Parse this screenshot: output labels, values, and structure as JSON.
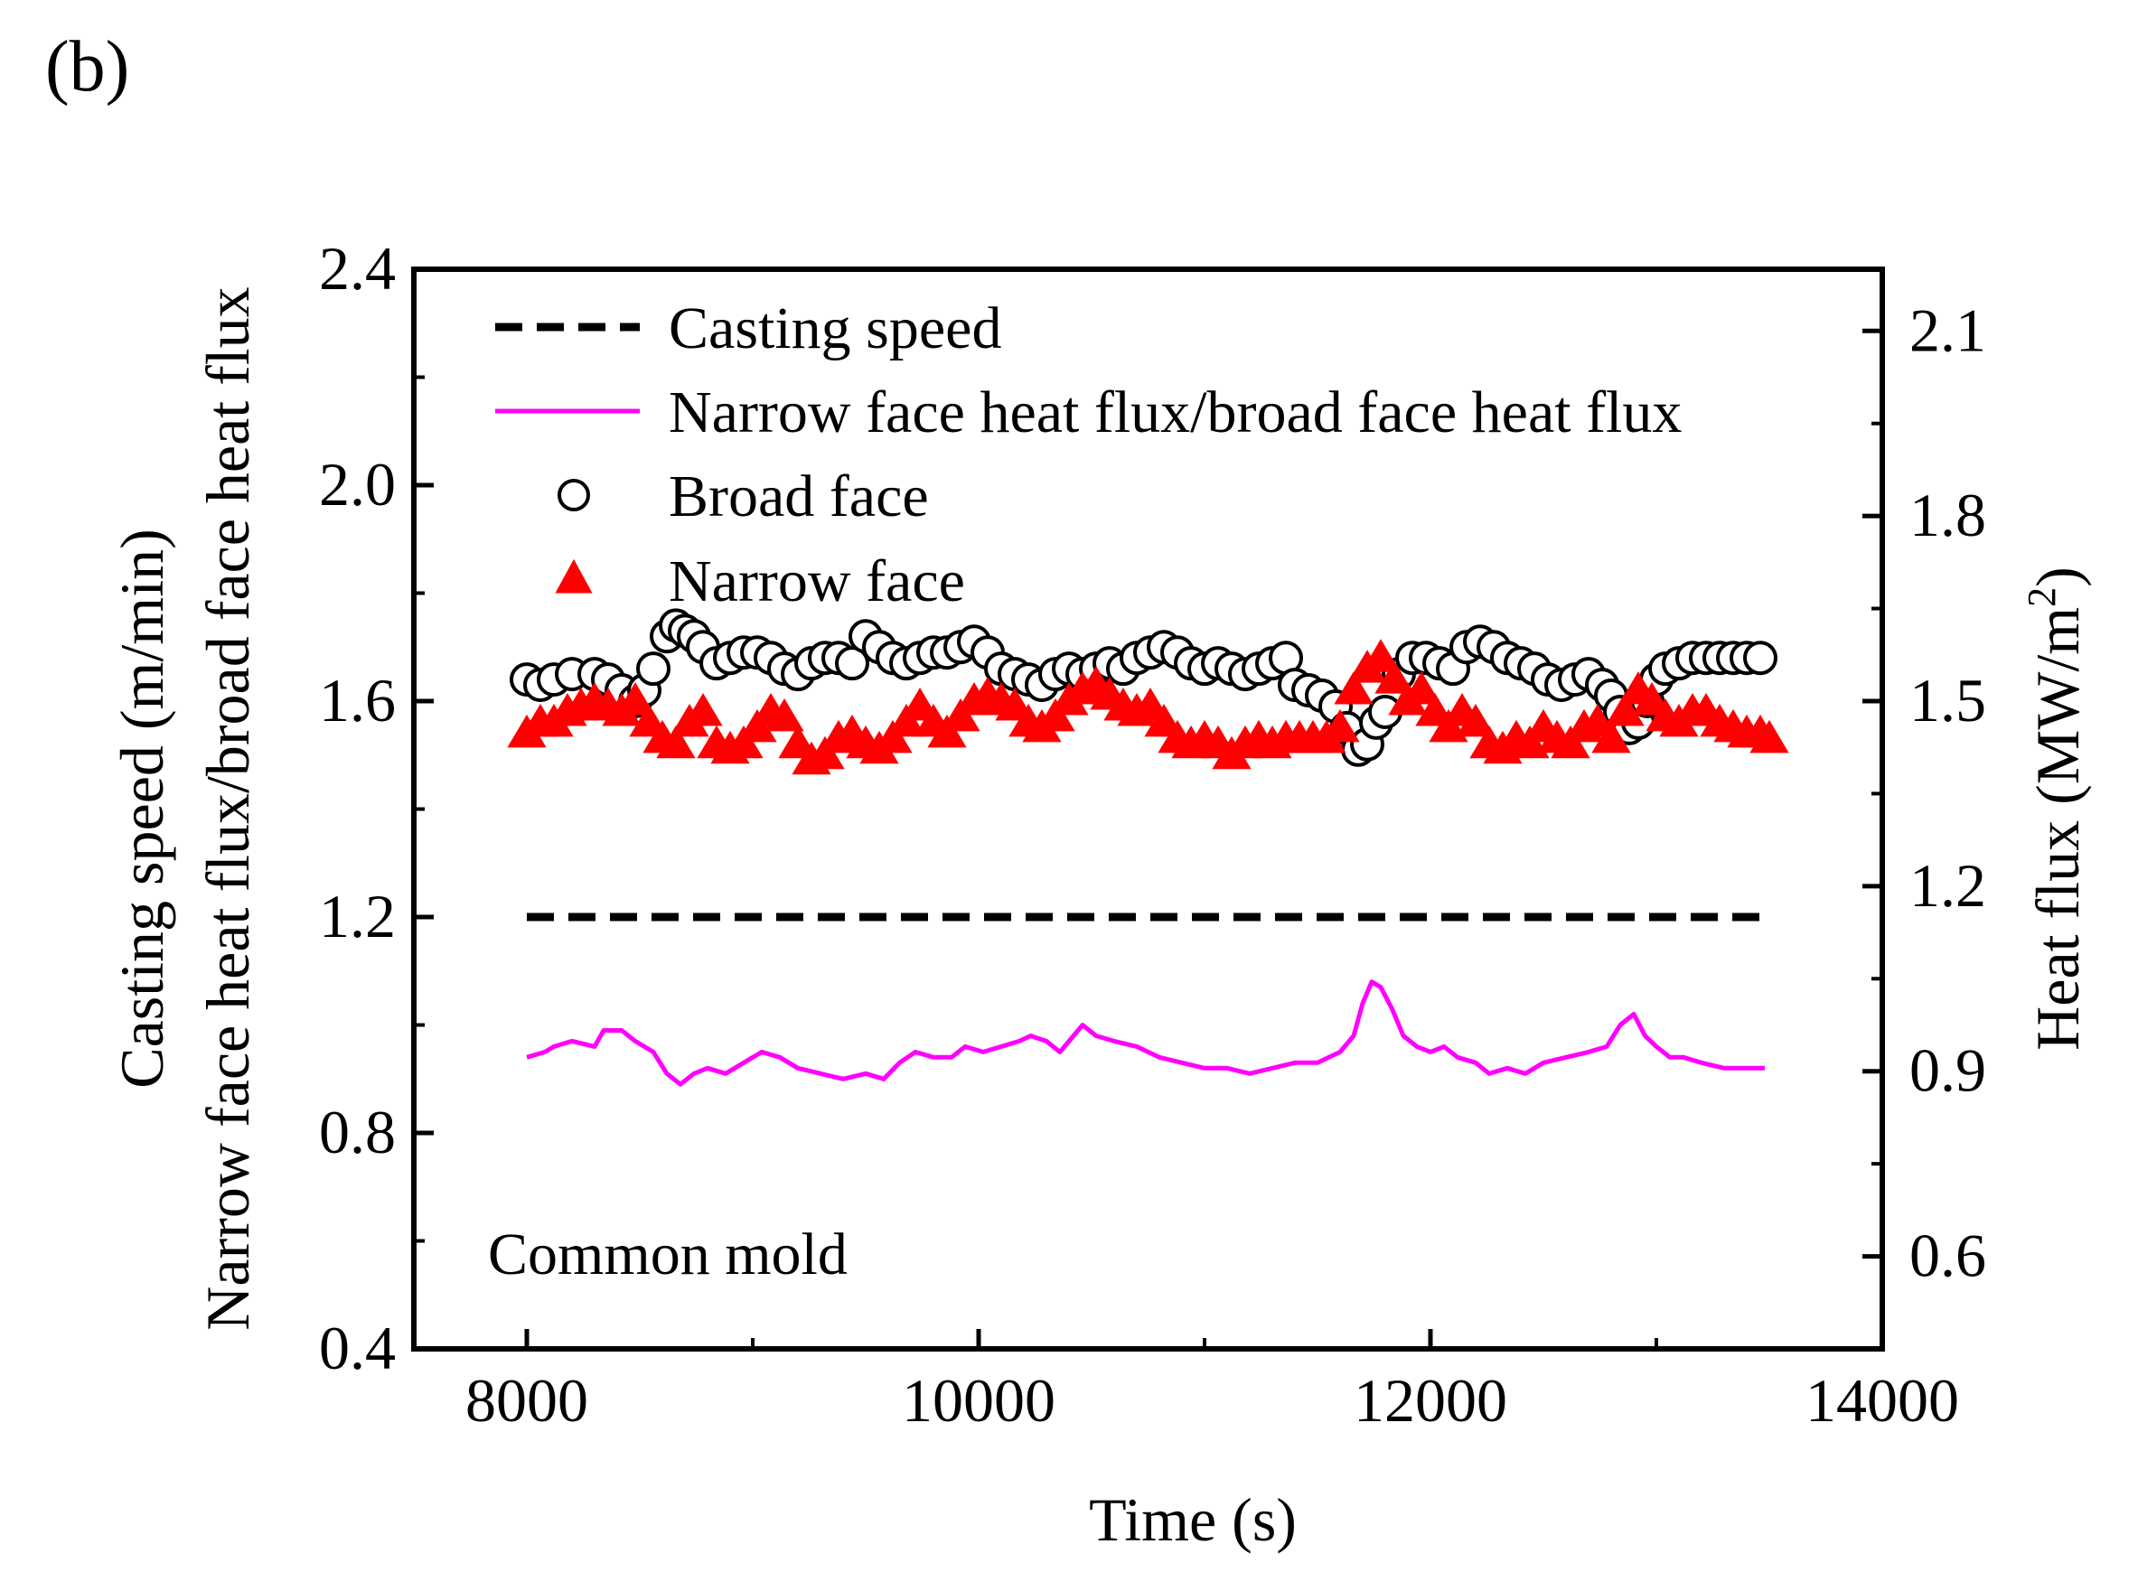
{
  "panel_label": "(b)",
  "chart_data": {
    "type": "line",
    "title": "",
    "xlabel": "Time (s)",
    "ylabel_left_line1": "Casting speed  (m/min)",
    "ylabel_left_line2": "Narrow face heat flux/broad face heat flux",
    "ylabel_right": "Heat flux  (MW/m",
    "ylabel_right_sup": "2",
    "ylabel_right_close": ")",
    "annotation": "Common mold",
    "xlim": [
      7500,
      14000
    ],
    "xticks": [
      8000,
      10000,
      12000,
      14000
    ],
    "ylim_left": [
      0.4,
      2.4
    ],
    "yticks_left": [
      "0.4",
      "0.8",
      "1.2",
      "1.6",
      "2.0",
      "2.4"
    ],
    "ylim_right": [
      0.45,
      2.2
    ],
    "yticks_right": [
      "0.6",
      "0.9",
      "1.2",
      "1.5",
      "1.8",
      "2.1"
    ],
    "grid": false,
    "legend_position": "top-left",
    "series": [
      {
        "name": "Casting speed",
        "axis": "left",
        "style": "dashed",
        "color": "#000000",
        "points": [
          [
            8000,
            1.2
          ],
          [
            13500,
            1.2
          ]
        ]
      },
      {
        "name": "Narrow face heat flux/broad face heat flux",
        "axis": "left",
        "style": "solid",
        "color": "#ff00ff",
        "points": [
          [
            8000,
            0.94
          ],
          [
            8080,
            0.95
          ],
          [
            8120,
            0.96
          ],
          [
            8200,
            0.97
          ],
          [
            8300,
            0.96
          ],
          [
            8340,
            0.99
          ],
          [
            8420,
            0.99
          ],
          [
            8480,
            0.97
          ],
          [
            8560,
            0.95
          ],
          [
            8620,
            0.91
          ],
          [
            8680,
            0.89
          ],
          [
            8740,
            0.91
          ],
          [
            8800,
            0.92
          ],
          [
            8880,
            0.91
          ],
          [
            8960,
            0.93
          ],
          [
            9040,
            0.95
          ],
          [
            9120,
            0.94
          ],
          [
            9200,
            0.92
          ],
          [
            9300,
            0.91
          ],
          [
            9400,
            0.9
          ],
          [
            9500,
            0.91
          ],
          [
            9580,
            0.9
          ],
          [
            9650,
            0.93
          ],
          [
            9720,
            0.95
          ],
          [
            9800,
            0.94
          ],
          [
            9880,
            0.94
          ],
          [
            9940,
            0.96
          ],
          [
            10020,
            0.95
          ],
          [
            10100,
            0.96
          ],
          [
            10180,
            0.97
          ],
          [
            10230,
            0.98
          ],
          [
            10300,
            0.97
          ],
          [
            10360,
            0.95
          ],
          [
            10420,
            0.98
          ],
          [
            10460,
            1.0
          ],
          [
            10520,
            0.98
          ],
          [
            10600,
            0.97
          ],
          [
            10700,
            0.96
          ],
          [
            10800,
            0.94
          ],
          [
            10900,
            0.93
          ],
          [
            11000,
            0.92
          ],
          [
            11100,
            0.92
          ],
          [
            11200,
            0.91
          ],
          [
            11300,
            0.92
          ],
          [
            11400,
            0.93
          ],
          [
            11500,
            0.93
          ],
          [
            11600,
            0.95
          ],
          [
            11660,
            0.98
          ],
          [
            11700,
            1.04
          ],
          [
            11740,
            1.08
          ],
          [
            11780,
            1.07
          ],
          [
            11830,
            1.03
          ],
          [
            11880,
            0.98
          ],
          [
            11940,
            0.96
          ],
          [
            12000,
            0.95
          ],
          [
            12060,
            0.96
          ],
          [
            12120,
            0.94
          ],
          [
            12200,
            0.93
          ],
          [
            12260,
            0.91
          ],
          [
            12340,
            0.92
          ],
          [
            12420,
            0.91
          ],
          [
            12500,
            0.93
          ],
          [
            12600,
            0.94
          ],
          [
            12700,
            0.95
          ],
          [
            12780,
            0.96
          ],
          [
            12840,
            1.0
          ],
          [
            12900,
            1.02
          ],
          [
            12950,
            0.98
          ],
          [
            13000,
            0.96
          ],
          [
            13060,
            0.94
          ],
          [
            13120,
            0.94
          ],
          [
            13200,
            0.93
          ],
          [
            13300,
            0.92
          ],
          [
            13400,
            0.92
          ],
          [
            13480,
            0.92
          ]
        ]
      },
      {
        "name": "Broad face",
        "axis": "left",
        "style": "open-circle",
        "color": "#000000",
        "points": [
          [
            8000,
            1.64
          ],
          [
            8060,
            1.63
          ],
          [
            8120,
            1.64
          ],
          [
            8200,
            1.65
          ],
          [
            8300,
            1.65
          ],
          [
            8360,
            1.64
          ],
          [
            8420,
            1.62
          ],
          [
            8480,
            1.6
          ],
          [
            8520,
            1.62
          ],
          [
            8560,
            1.66
          ],
          [
            8620,
            1.72
          ],
          [
            8660,
            1.74
          ],
          [
            8700,
            1.73
          ],
          [
            8740,
            1.72
          ],
          [
            8780,
            1.7
          ],
          [
            8840,
            1.67
          ],
          [
            8900,
            1.68
          ],
          [
            8960,
            1.69
          ],
          [
            9020,
            1.69
          ],
          [
            9080,
            1.68
          ],
          [
            9140,
            1.66
          ],
          [
            9200,
            1.65
          ],
          [
            9260,
            1.67
          ],
          [
            9320,
            1.68
          ],
          [
            9380,
            1.68
          ],
          [
            9440,
            1.67
          ],
          [
            9500,
            1.72
          ],
          [
            9560,
            1.7
          ],
          [
            9620,
            1.68
          ],
          [
            9680,
            1.67
          ],
          [
            9740,
            1.68
          ],
          [
            9800,
            1.69
          ],
          [
            9860,
            1.69
          ],
          [
            9920,
            1.7
          ],
          [
            9980,
            1.71
          ],
          [
            10040,
            1.69
          ],
          [
            10100,
            1.66
          ],
          [
            10160,
            1.65
          ],
          [
            10220,
            1.64
          ],
          [
            10280,
            1.63
          ],
          [
            10340,
            1.65
          ],
          [
            10400,
            1.66
          ],
          [
            10460,
            1.65
          ],
          [
            10520,
            1.66
          ],
          [
            10580,
            1.67
          ],
          [
            10640,
            1.66
          ],
          [
            10700,
            1.68
          ],
          [
            10760,
            1.69
          ],
          [
            10820,
            1.7
          ],
          [
            10880,
            1.69
          ],
          [
            10940,
            1.67
          ],
          [
            11000,
            1.66
          ],
          [
            11060,
            1.67
          ],
          [
            11120,
            1.66
          ],
          [
            11180,
            1.65
          ],
          [
            11240,
            1.66
          ],
          [
            11300,
            1.67
          ],
          [
            11360,
            1.68
          ],
          [
            11400,
            1.63
          ],
          [
            11460,
            1.62
          ],
          [
            11520,
            1.61
          ],
          [
            11580,
            1.59
          ],
          [
            11630,
            1.55
          ],
          [
            11680,
            1.51
          ],
          [
            11720,
            1.52
          ],
          [
            11760,
            1.56
          ],
          [
            11800,
            1.58
          ],
          [
            11860,
            1.65
          ],
          [
            11920,
            1.68
          ],
          [
            11980,
            1.68
          ],
          [
            12040,
            1.67
          ],
          [
            12100,
            1.66
          ],
          [
            12160,
            1.7
          ],
          [
            12220,
            1.71
          ],
          [
            12280,
            1.7
          ],
          [
            12340,
            1.68
          ],
          [
            12400,
            1.67
          ],
          [
            12460,
            1.66
          ],
          [
            12520,
            1.64
          ],
          [
            12580,
            1.63
          ],
          [
            12640,
            1.64
          ],
          [
            12700,
            1.65
          ],
          [
            12760,
            1.63
          ],
          [
            12800,
            1.61
          ],
          [
            12840,
            1.58
          ],
          [
            12880,
            1.55
          ],
          [
            12920,
            1.56
          ],
          [
            12960,
            1.6
          ],
          [
            13000,
            1.64
          ],
          [
            13040,
            1.66
          ],
          [
            13100,
            1.67
          ],
          [
            13160,
            1.68
          ],
          [
            13220,
            1.68
          ],
          [
            13280,
            1.68
          ],
          [
            13340,
            1.68
          ],
          [
            13400,
            1.68
          ],
          [
            13460,
            1.68
          ]
        ]
      },
      {
        "name": "Narrow face",
        "axis": "left",
        "style": "open-triangle",
        "color": "#ff0000",
        "points": [
          [
            8000,
            1.54
          ],
          [
            8060,
            1.56
          ],
          [
            8120,
            1.56
          ],
          [
            8180,
            1.58
          ],
          [
            8240,
            1.59
          ],
          [
            8300,
            1.6
          ],
          [
            8360,
            1.59
          ],
          [
            8420,
            1.58
          ],
          [
            8480,
            1.6
          ],
          [
            8540,
            1.56
          ],
          [
            8600,
            1.53
          ],
          [
            8660,
            1.52
          ],
          [
            8720,
            1.56
          ],
          [
            8780,
            1.58
          ],
          [
            8840,
            1.52
          ],
          [
            8900,
            1.51
          ],
          [
            8960,
            1.52
          ],
          [
            9020,
            1.55
          ],
          [
            9080,
            1.58
          ],
          [
            9140,
            1.57
          ],
          [
            9200,
            1.52
          ],
          [
            9260,
            1.49
          ],
          [
            9320,
            1.5
          ],
          [
            9380,
            1.53
          ],
          [
            9440,
            1.54
          ],
          [
            9500,
            1.52
          ],
          [
            9560,
            1.51
          ],
          [
            9620,
            1.53
          ],
          [
            9680,
            1.56
          ],
          [
            9740,
            1.59
          ],
          [
            9800,
            1.56
          ],
          [
            9860,
            1.54
          ],
          [
            9920,
            1.57
          ],
          [
            9980,
            1.6
          ],
          [
            10040,
            1.61
          ],
          [
            10100,
            1.6
          ],
          [
            10160,
            1.59
          ],
          [
            10220,
            1.56
          ],
          [
            10280,
            1.55
          ],
          [
            10340,
            1.57
          ],
          [
            10400,
            1.6
          ],
          [
            10460,
            1.62
          ],
          [
            10520,
            1.63
          ],
          [
            10580,
            1.61
          ],
          [
            10640,
            1.59
          ],
          [
            10700,
            1.58
          ],
          [
            10760,
            1.59
          ],
          [
            10820,
            1.56
          ],
          [
            10880,
            1.53
          ],
          [
            10940,
            1.52
          ],
          [
            11000,
            1.53
          ],
          [
            11060,
            1.52
          ],
          [
            11120,
            1.5
          ],
          [
            11180,
            1.52
          ],
          [
            11240,
            1.53
          ],
          [
            11300,
            1.52
          ],
          [
            11360,
            1.53
          ],
          [
            11420,
            1.53
          ],
          [
            11480,
            1.53
          ],
          [
            11540,
            1.53
          ],
          [
            11600,
            1.55
          ],
          [
            11660,
            1.62
          ],
          [
            11720,
            1.66
          ],
          [
            11780,
            1.68
          ],
          [
            11840,
            1.64
          ],
          [
            11900,
            1.6
          ],
          [
            11960,
            1.62
          ],
          [
            12020,
            1.58
          ],
          [
            12080,
            1.55
          ],
          [
            12140,
            1.58
          ],
          [
            12200,
            1.56
          ],
          [
            12260,
            1.52
          ],
          [
            12320,
            1.51
          ],
          [
            12380,
            1.53
          ],
          [
            12440,
            1.52
          ],
          [
            12500,
            1.55
          ],
          [
            12560,
            1.53
          ],
          [
            12620,
            1.52
          ],
          [
            12680,
            1.55
          ],
          [
            12740,
            1.56
          ],
          [
            12800,
            1.53
          ],
          [
            12860,
            1.58
          ],
          [
            12920,
            1.62
          ],
          [
            12980,
            1.6
          ],
          [
            13040,
            1.57
          ],
          [
            13100,
            1.56
          ],
          [
            13160,
            1.58
          ],
          [
            13220,
            1.58
          ],
          [
            13280,
            1.56
          ],
          [
            13340,
            1.55
          ],
          [
            13400,
            1.54
          ],
          [
            13460,
            1.54
          ],
          [
            13500,
            1.53
          ]
        ]
      }
    ]
  }
}
